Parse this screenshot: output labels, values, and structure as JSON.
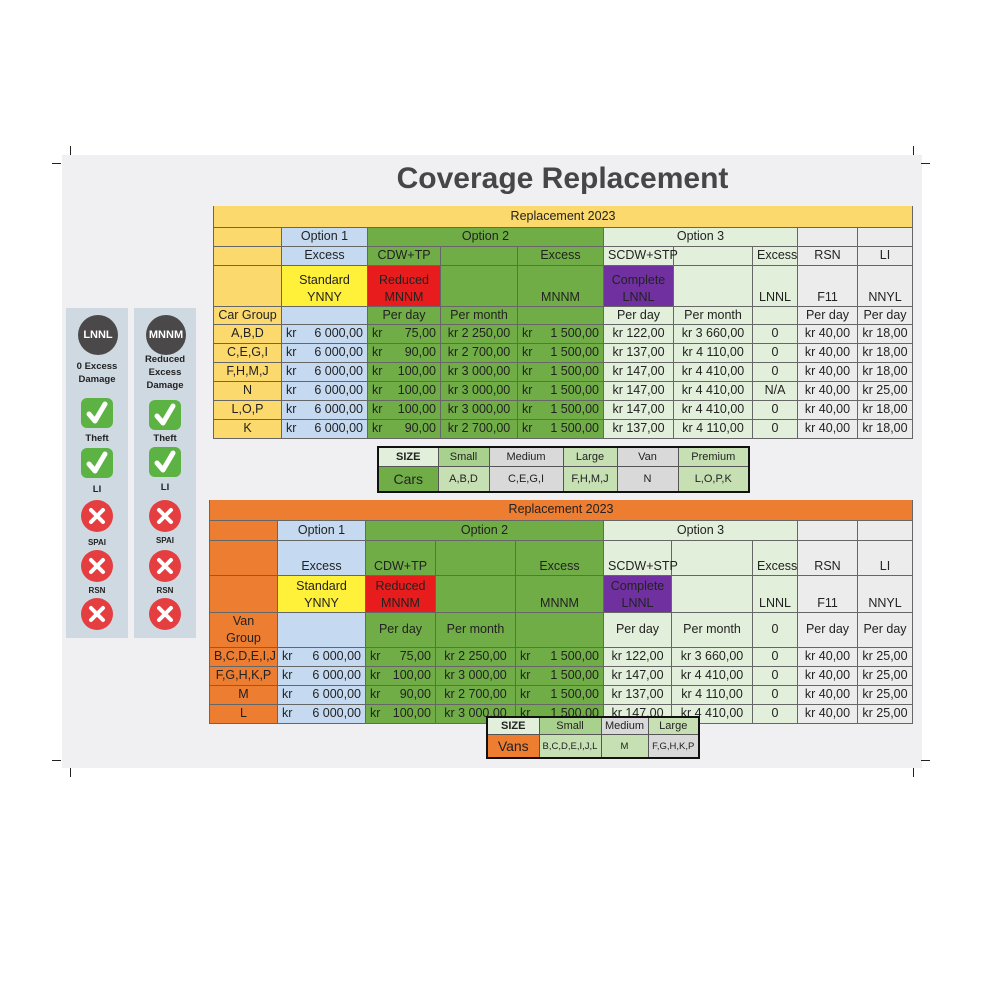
{
  "title": "Coverage Replacement",
  "colors": {
    "car_header": "#fcd96c",
    "van_header": "#ed7d31",
    "option1": "#c5daf1",
    "option2": "#70ad47",
    "option3": "#e2efda",
    "standard": "#fff03a",
    "reduced": "#e81c1c",
    "complete": "#7030a0"
  },
  "sidebar": [
    {
      "code": "LNNL",
      "label": "0 Excess\nDamage",
      "items": [
        {
          "label": "Theft",
          "icon": "check-icon"
        },
        {
          "label": "LI",
          "icon": "check-icon"
        },
        {
          "label": "SPAI",
          "icon": "x-icon"
        },
        {
          "label": "RSN",
          "icon": "x-icon"
        },
        {
          "label": "",
          "icon": "x-icon"
        }
      ]
    },
    {
      "code": "MNNM",
      "label": "Reduced\nExcess\nDamage",
      "items": [
        {
          "label": "Theft",
          "icon": "check-icon"
        },
        {
          "label": "LI",
          "icon": "check-icon"
        },
        {
          "label": "SPAI",
          "icon": "x-icon"
        },
        {
          "label": "RSN",
          "icon": "x-icon"
        },
        {
          "label": "",
          "icon": "x-icon"
        }
      ]
    }
  ],
  "car_table": {
    "title": "Replacement 2023",
    "option_row": [
      "",
      "Option 1",
      "Option 2",
      "Option 3",
      "",
      ""
    ],
    "type_row": [
      "",
      "Excess",
      "CDW+TP",
      "",
      "Excess",
      "SCDW+STP",
      "",
      "Excess",
      "RSN",
      "LI"
    ],
    "code_row": [
      "",
      "Standard\nYNNY",
      "Reduced\nMNNM",
      "",
      "MNNM",
      "Complete\nLNNL",
      "",
      "LNNL",
      "F11",
      "NNYL"
    ],
    "unit_row": [
      "Car Group",
      "",
      "Per day",
      "Per month",
      "",
      "Per day",
      "Per month",
      "",
      "Per day",
      "Per day"
    ],
    "rows": [
      [
        "A,B,D",
        "kr 6 000,00",
        "kr 75,00",
        "kr 2 250,00",
        "kr 1 500,00",
        "kr 122,00",
        "kr 3 660,00",
        "0",
        "kr 40,00",
        "kr 18,00"
      ],
      [
        "C,E,G,I",
        "kr 6 000,00",
        "kr 90,00",
        "kr 2 700,00",
        "kr 1 500,00",
        "kr 137,00",
        "kr 4 110,00",
        "0",
        "kr 40,00",
        "kr 18,00"
      ],
      [
        "F,H,M,J",
        "kr 6 000,00",
        "kr 100,00",
        "kr 3 000,00",
        "kr 1 500,00",
        "kr 147,00",
        "kr 4 410,00",
        "0",
        "kr 40,00",
        "kr 18,00"
      ],
      [
        "N",
        "kr 6 000,00",
        "kr 100,00",
        "kr 3 000,00",
        "kr 1 500,00",
        "kr 147,00",
        "kr 4 410,00",
        "N/A",
        "kr 40,00",
        "kr 25,00"
      ],
      [
        "L,O,P",
        "kr 6 000,00",
        "kr 100,00",
        "kr 3 000,00",
        "kr 1 500,00",
        "kr 147,00",
        "kr 4 410,00",
        "0",
        "kr 40,00",
        "kr 18,00"
      ],
      [
        "K",
        "kr 6 000,00",
        "kr 90,00",
        "kr 2 700,00",
        "kr 1 500,00",
        "kr 137,00",
        "kr 4 110,00",
        "0",
        "kr 40,00",
        "kr 18,00"
      ]
    ]
  },
  "car_sizes": {
    "header": [
      "SIZE",
      "Small",
      "Medium",
      "Large",
      "Van",
      "Premium"
    ],
    "values": [
      "Cars",
      "A,B,D",
      "C,E,G,I",
      "F,H,M,J",
      "N",
      "L,O,P,K"
    ]
  },
  "van_table": {
    "title": "Replacement 2023",
    "option_row": [
      "",
      "Option 1",
      "Option 2",
      "Option 3",
      "",
      ""
    ],
    "type_row": [
      "",
      "Excess",
      "CDW+TP",
      "",
      "Excess",
      "SCDW+STP",
      "",
      "Excess",
      "RSN",
      "LI"
    ],
    "code_row": [
      "",
      "Standard\nYNNY",
      "Reduced\nMNNM",
      "",
      "MNNM",
      "Complete\nLNNL",
      "",
      "LNNL",
      "F11",
      "NNYL"
    ],
    "unit_row": [
      "Van Group",
      "",
      "Per day",
      "Per month",
      "",
      "Per day",
      "Per month",
      "0",
      "Per day",
      "Per day"
    ],
    "rows": [
      [
        "B,C,D,E,I,J",
        "kr 6 000,00",
        "kr 75,00",
        "kr 2 250,00",
        "kr 1 500,00",
        "kr 122,00",
        "kr 3 660,00",
        "0",
        "kr 40,00",
        "kr 25,00"
      ],
      [
        "F,G,H,K,P",
        "kr 6 000,00",
        "kr 100,00",
        "kr 3 000,00",
        "kr 1 500,00",
        "kr 147,00",
        "kr 4 410,00",
        "0",
        "kr 40,00",
        "kr 25,00"
      ],
      [
        "M",
        "kr 6 000,00",
        "kr 90,00",
        "kr 2 700,00",
        "kr 1 500,00",
        "kr 137,00",
        "kr 4 110,00",
        "0",
        "kr 40,00",
        "kr 25,00"
      ],
      [
        "L",
        "kr 6 000,00",
        "kr 100,00",
        "kr 3 000,00",
        "kr 1 500,00",
        "kr 147,00",
        "kr 4 410,00",
        "0",
        "kr 40,00",
        "kr 25,00"
      ]
    ]
  },
  "van_sizes": {
    "header": [
      "SIZE",
      "Small",
      "Medium",
      "Large"
    ],
    "values": [
      "Vans",
      "B,C,D,E,I,J,L",
      "M",
      "F,G,H,K,P"
    ]
  }
}
